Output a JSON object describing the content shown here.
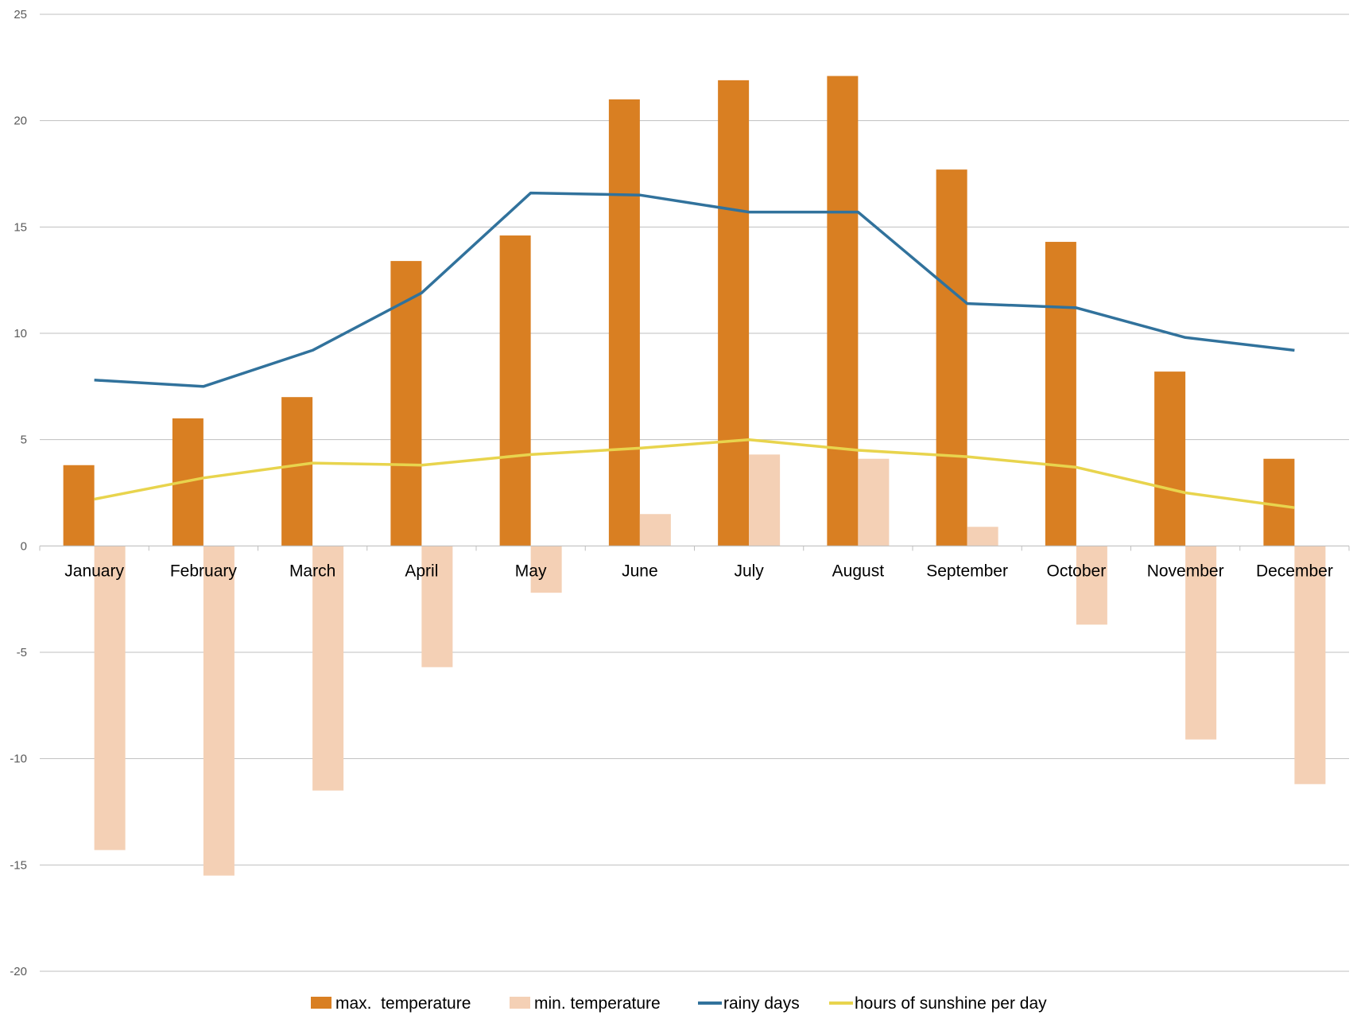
{
  "chart_data": {
    "type": "bar",
    "categories": [
      "January",
      "February",
      "March",
      "April",
      "May",
      "June",
      "July",
      "August",
      "September",
      "October",
      "November",
      "December"
    ],
    "series": [
      {
        "name": "max.  temperature",
        "kind": "bar",
        "color": "#d97f22",
        "values": [
          3.8,
          6.0,
          7.0,
          13.4,
          14.6,
          21.0,
          21.9,
          22.1,
          17.7,
          14.3,
          8.2,
          4.1
        ]
      },
      {
        "name": "min. temperature",
        "kind": "bar",
        "color": "#f4d0b5",
        "values": [
          -14.3,
          -15.5,
          -11.5,
          -5.7,
          -2.2,
          1.5,
          4.3,
          4.1,
          0.9,
          -3.7,
          -9.1,
          -11.2
        ]
      },
      {
        "name": "rainy days",
        "kind": "line",
        "color": "#31729c",
        "values": [
          7.8,
          7.5,
          9.2,
          11.9,
          16.6,
          16.5,
          15.7,
          15.7,
          11.4,
          11.2,
          9.8,
          9.2
        ]
      },
      {
        "name": "hours of sunshine per day",
        "kind": "line",
        "color": "#e8d44d",
        "values": [
          2.2,
          3.2,
          3.9,
          3.8,
          4.3,
          4.6,
          5.0,
          4.5,
          4.2,
          3.7,
          2.5,
          1.8
        ]
      }
    ],
    "ylim": [
      -20,
      25
    ],
    "yticks": [
      25,
      20,
      15,
      10,
      5,
      0,
      -5,
      -10,
      -15,
      -20
    ],
    "title": "",
    "xlabel": "",
    "ylabel": "",
    "grid": true,
    "legend_position": "bottom"
  }
}
